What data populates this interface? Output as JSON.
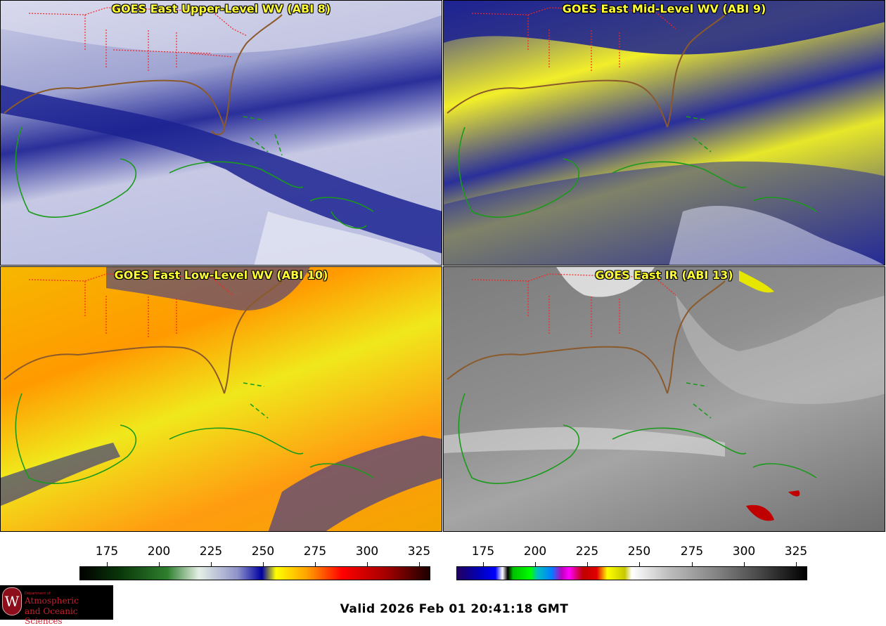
{
  "panels": [
    {
      "title": "GOES East Upper-Level WV (ABI 8)"
    },
    {
      "title": "GOES East Mid-Level WV (ABI 9)"
    },
    {
      "title": "GOES East Low-Level WV (ABI 10)"
    },
    {
      "title": "GOES East IR (ABI 13)"
    }
  ],
  "colorbars": {
    "wv_ticks": [
      "175",
      "200",
      "225",
      "250",
      "275",
      "300",
      "325"
    ],
    "ir_ticks": [
      "175",
      "200",
      "225",
      "250",
      "275",
      "300",
      "325"
    ]
  },
  "logo": {
    "line1": "Department of",
    "line2": "Atmospheric",
    "line3": "and Oceanic Sciences",
    "seal_letter": "W"
  },
  "valid_time": "Valid 2026 Feb 01 20:41:18 GMT",
  "colors": {
    "title": "#ffff33",
    "state_borders": "#ff2020",
    "coastline": "#1a9a1a",
    "land_coast_brown": "#8b5a2b"
  }
}
